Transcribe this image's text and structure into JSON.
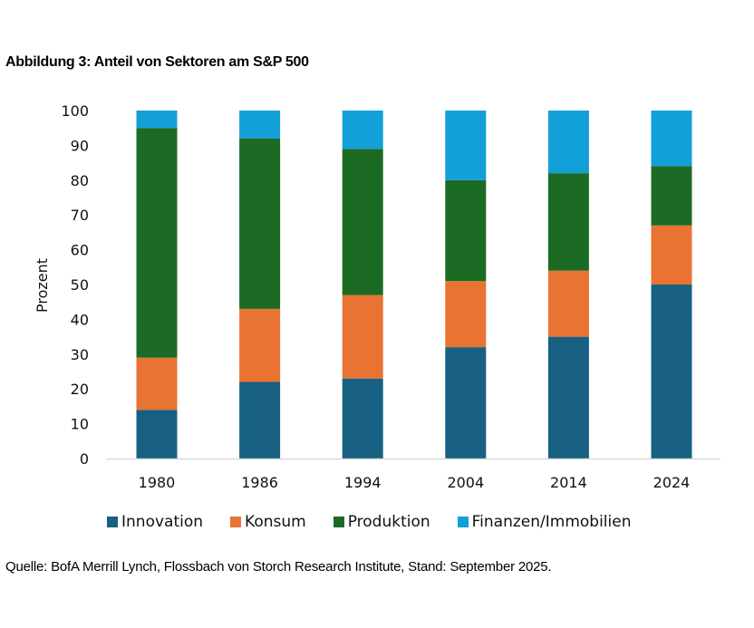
{
  "header": {
    "title": "Abbildung 3: Anteil von Sektoren am S&P 500"
  },
  "footer": {
    "source": "Quelle: BofA Merrill Lynch, Flossbach von Storch Research Institute, Stand: September 2025."
  },
  "chart_data": {
    "type": "bar",
    "stacked": true,
    "title": "Abbildung 3: Anteil von Sektoren am S&P 500",
    "xlabel": "",
    "ylabel": "Prozent",
    "ylim": [
      0,
      100
    ],
    "yticks": [
      0,
      10,
      20,
      30,
      40,
      50,
      60,
      70,
      80,
      90,
      100
    ],
    "grid": false,
    "legend_position": "bottom",
    "categories": [
      "1980",
      "1986",
      "1994",
      "2004",
      "2014",
      "2024"
    ],
    "series": [
      {
        "name": "Innovation",
        "color": "#176082",
        "values": [
          14,
          22,
          23,
          32,
          35,
          50
        ]
      },
      {
        "name": "Konsum",
        "color": "#E97333",
        "values": [
          15,
          21,
          24,
          19,
          19,
          17
        ]
      },
      {
        "name": "Produktion",
        "color": "#1B6B24",
        "values": [
          66,
          49,
          42,
          29,
          28,
          17
        ]
      },
      {
        "name": "Finanzen/Immobilien",
        "color": "#139FD8",
        "values": [
          5,
          8,
          11,
          20,
          18,
          16
        ]
      }
    ]
  }
}
